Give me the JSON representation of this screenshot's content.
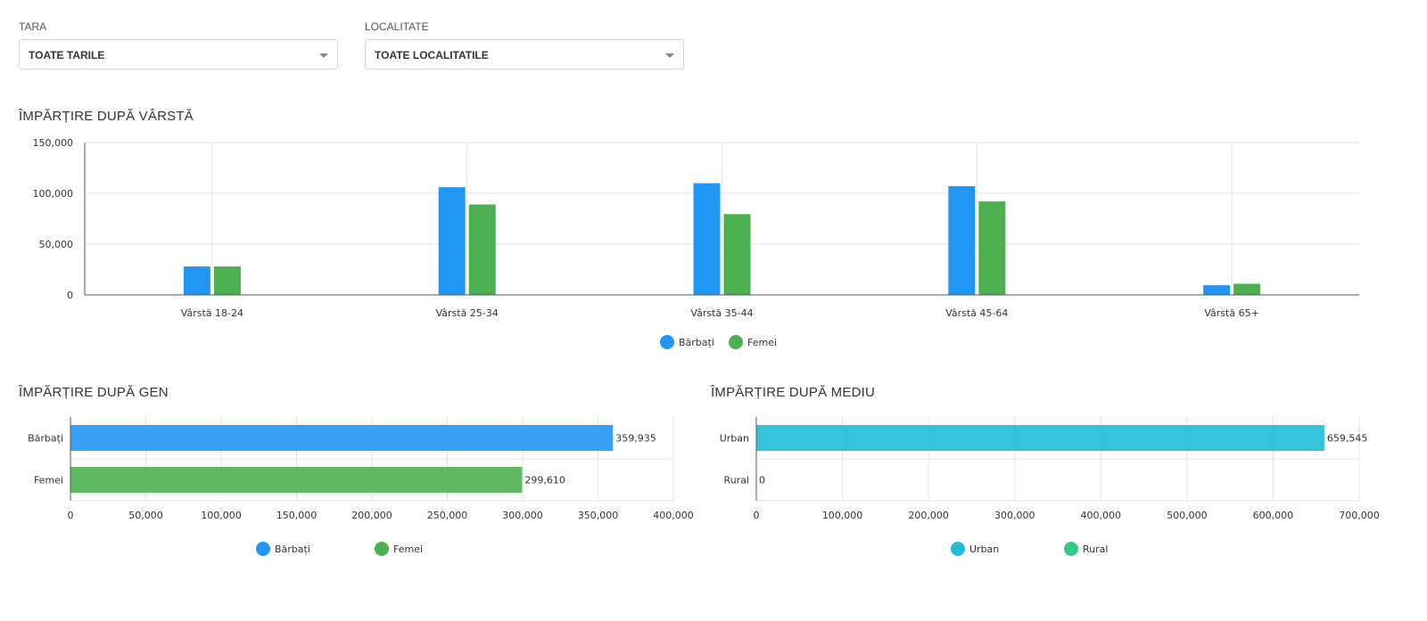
{
  "filters": {
    "tara": {
      "label": "TARA",
      "value": "TOATE TARILE"
    },
    "localitate": {
      "label": "LOCALITATE",
      "value": "TOATE LOCALITATILE"
    }
  },
  "colors": {
    "barbati": "#2196F3",
    "femei": "#4CAF50",
    "urban": "#1EBDD6",
    "rural": "#34C985"
  },
  "chart_data": [
    {
      "type": "bar",
      "title": "ÎMPĂRȚIRE DUPĂ VÂRSTĂ",
      "categories": [
        "Vârstă 18-24",
        "Vârstă 25-34",
        "Vârstă 35-44",
        "Vârstă 45-64",
        "Vârstă 65+"
      ],
      "series": [
        {
          "name": "Bărbați",
          "color": "#2196F3",
          "values": [
            28000,
            106000,
            110000,
            107000,
            9500
          ]
        },
        {
          "name": "Femei",
          "color": "#4CAF50",
          "values": [
            28000,
            89000,
            79500,
            92000,
            11000
          ]
        }
      ],
      "yticks": [
        "0",
        "50,000",
        "100,000",
        "150,000"
      ],
      "ylim": [
        0,
        150000
      ],
      "grid": true,
      "legend": "bottom"
    },
    {
      "type": "bar",
      "orientation": "horizontal",
      "title": "ÎMPĂRȚIRE DUPĂ GEN",
      "categories": [
        "Bărbați",
        "Femei"
      ],
      "values": [
        359935,
        299610
      ],
      "value_labels": [
        "359,935",
        "299,610"
      ],
      "colors": [
        "#2196F3",
        "#4CAF50"
      ],
      "xticks": [
        "0",
        "50,000",
        "100,000",
        "150,000",
        "200,000",
        "250,000",
        "300,000",
        "350,000",
        "400,000"
      ],
      "xlim": [
        0,
        400000
      ],
      "legend_entries": [
        {
          "name": "Bărbați",
          "color": "#2196F3"
        },
        {
          "name": "Femei",
          "color": "#4CAF50"
        }
      ],
      "grid": true,
      "legend": "bottom"
    },
    {
      "type": "bar",
      "orientation": "horizontal",
      "title": "ÎMPĂRȚIRE DUPĂ MEDIU",
      "categories": [
        "Urban",
        "Rural"
      ],
      "values": [
        659545,
        0
      ],
      "value_labels": [
        "659,545",
        "0"
      ],
      "colors": [
        "#1EBDD6",
        "#34C985"
      ],
      "xticks": [
        "0",
        "100,000",
        "200,000",
        "300,000",
        "400,000",
        "500,000",
        "600,000",
        "700,000"
      ],
      "xlim": [
        0,
        700000
      ],
      "legend_entries": [
        {
          "name": "Urban",
          "color": "#1EBDD6"
        },
        {
          "name": "Rural",
          "color": "#34C985"
        }
      ],
      "grid": true,
      "legend": "bottom"
    }
  ]
}
